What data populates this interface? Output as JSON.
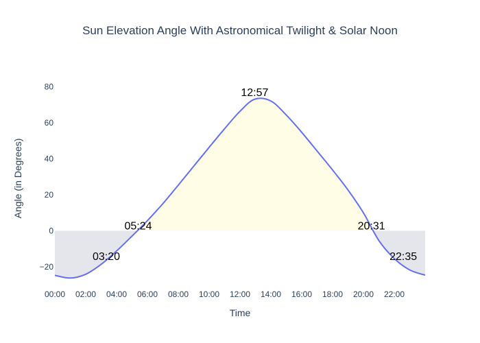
{
  "chart_data": {
    "type": "line",
    "title": "Sun Elevation Angle With Astronomical Twilight & Solar Noon",
    "xlabel": "Time",
    "ylabel": "Angle (in Degrees)",
    "xlim_hours": [
      0,
      24
    ],
    "ylim": [
      -30,
      90
    ],
    "x_ticks": [
      "00:00",
      "02:00",
      "04:00",
      "06:00",
      "08:00",
      "10:00",
      "12:00",
      "14:00",
      "16:00",
      "18:00",
      "20:00",
      "22:00"
    ],
    "y_ticks": [
      "80",
      "60",
      "40",
      "20",
      "0",
      "−20"
    ],
    "series": [
      {
        "line_color": "#636efa",
        "x": [
          "00:00",
          "01:00",
          "02:00",
          "03:00",
          "04:00",
          "05:00",
          "06:00",
          "07:00",
          "08:00",
          "09:00",
          "10:00",
          "11:00",
          "12:00",
          "12:57",
          "14:00",
          "15:00",
          "16:00",
          "17:00",
          "18:00",
          "19:00",
          "20:00",
          "21:00",
          "22:00",
          "23:00",
          "24:00"
        ],
        "y": [
          -24.8,
          -26.3,
          -24.2,
          -18.7,
          -11.3,
          -3.0,
          5.6,
          15.0,
          25.3,
          35.8,
          46.3,
          56.6,
          66.3,
          73.0,
          72.0,
          64.2,
          54.6,
          44.2,
          33.7,
          22.6,
          9.9,
          -5.5,
          -15.5,
          -21.8,
          -24.7
        ]
      }
    ],
    "fills": {
      "day_color": "#fffde6",
      "night_color": "#e5e5ec"
    },
    "annotations": [
      {
        "text": "03:20",
        "x": "03:20",
        "y": -14
      },
      {
        "text": "05:24",
        "x": "05:24",
        "y": 3
      },
      {
        "text": "12:57",
        "x": "12:57",
        "y": 77
      },
      {
        "text": "20:31",
        "x": "20:31",
        "y": 3
      },
      {
        "text": "22:35",
        "x": "22:35",
        "y": -14
      }
    ]
  }
}
